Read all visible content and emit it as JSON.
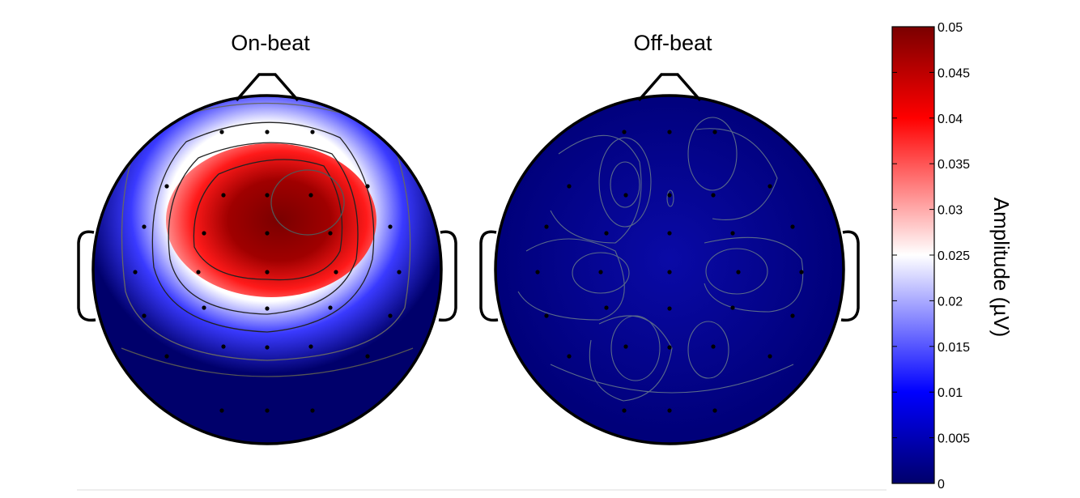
{
  "chart_data": {
    "type": "heatmap",
    "panels": [
      {
        "title": "On-beat",
        "scalp_map": "amplitude concentrated over fronto-central region (max ≈0.05 µV), falling to ≈0 at posterior and lateral edges",
        "peak_value": 0.05,
        "min_value": 0
      },
      {
        "title": "Off-beat",
        "scalp_map": "uniformly low amplitude across scalp",
        "peak_value": 0.008,
        "min_value": 0
      }
    ],
    "colorbar": {
      "label": "Amplitude (µV)",
      "range": [
        0,
        0.05
      ],
      "ticks": [
        "0.05",
        "0.045",
        "0.04",
        "0.035",
        "0.03",
        "0.025",
        "0.02",
        "0.015",
        "0.01",
        "0.005",
        "0"
      ],
      "colors": [
        "#00006b",
        "#0000ff",
        "#ffffff",
        "#ff0000",
        "#7a0000"
      ]
    },
    "electrodes_per_map": 32
  }
}
